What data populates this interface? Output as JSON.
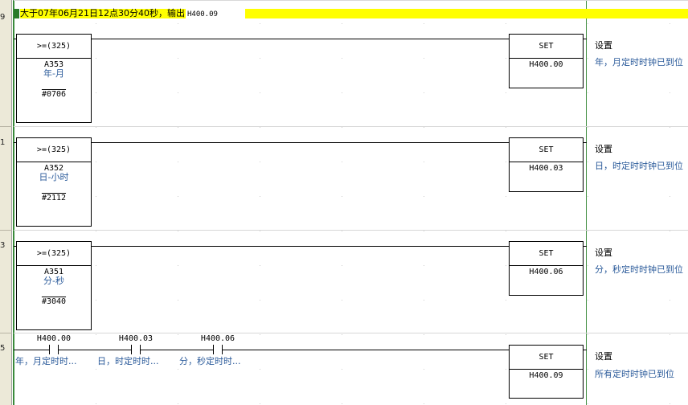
{
  "gutter": {
    "rung_numbers": [
      "9",
      "1",
      "3",
      "5"
    ]
  },
  "colors": {
    "rail": "#3a8a3a",
    "comment_highlight": "#ffff00",
    "comment_marker": "#2a7a2a",
    "annotation_text": "#2a5a9a"
  },
  "rung_comment": {
    "text": "大于07年06月21日12点30分40秒，输出",
    "address": "H400.09"
  },
  "rungs": [
    {
      "compare": {
        "op": ">=(325)",
        "operand1": "A353",
        "operand1_comment": "年-月",
        "operand2": "#0706"
      },
      "output": {
        "instr": "SET",
        "operand": "H400.00",
        "comment_title": "设置",
        "comment": "年，月定时时钟已到位"
      }
    },
    {
      "compare": {
        "op": ">=(325)",
        "operand1": "A352",
        "operand1_comment": "日-小时",
        "operand2": "#2112"
      },
      "output": {
        "instr": "SET",
        "operand": "H400.03",
        "comment_title": "设置",
        "comment": "日，时定时时钟已到位"
      }
    },
    {
      "compare": {
        "op": ">=(325)",
        "operand1": "A351",
        "operand1_comment": "分-秒",
        "operand2": "#3040"
      },
      "output": {
        "instr": "SET",
        "operand": "H400.06",
        "comment_title": "设置",
        "comment": "分，秒定时时钟已到位"
      }
    }
  ],
  "final_rung": {
    "contacts": [
      {
        "address": "H400.00",
        "comment": "年，月定时时..."
      },
      {
        "address": "H400.03",
        "comment": "日，时定时时..."
      },
      {
        "address": "H400.06",
        "comment": "分，秒定时时..."
      }
    ],
    "output": {
      "instr": "SET",
      "operand": "H400.09",
      "comment_title": "设置",
      "comment": "所有定时时钟已到位"
    }
  }
}
